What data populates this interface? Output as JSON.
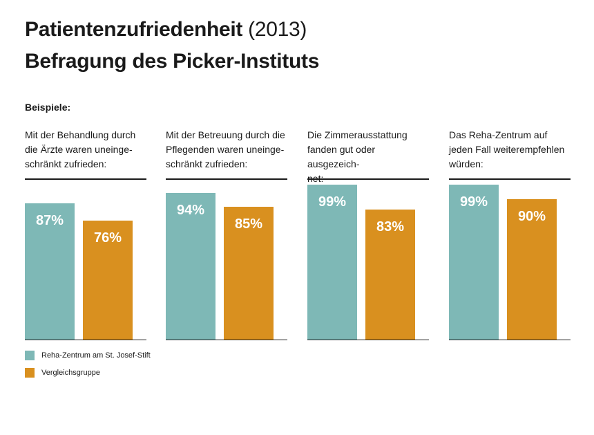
{
  "title": {
    "line1_bold": "Patientenzufriedenheit",
    "line1_light": "(2013)",
    "line2": "Befragung des Picker-Instituts"
  },
  "subheading": "Beispiele:",
  "colors": {
    "series1": "#7eb8b6",
    "series2": "#d9901f"
  },
  "chart_data": {
    "type": "bar",
    "categories": [
      "Mit der Behandlung durch die Ärzte waren uneinge-schränkt zufrieden:",
      "Mit der Betreuung durch die Pflegenden waren uneinge-schränkt zufrieden:",
      "Die Zimmerausstattung fanden gut oder ausgezeich-net:",
      "Das Reha-Zentrum auf jeden Fall weiterempfehlen würden:"
    ],
    "category_lines": [
      [
        "Mit der Behandlung durch",
        "die Ärzte waren uneinge-",
        "schränkt zufrieden:"
      ],
      [
        "Mit der Betreuung durch die",
        "Pflegenden waren uneinge-",
        "schränkt zufrieden:"
      ],
      [
        "Die Zimmerausstattung",
        "fanden gut oder ausgezeich-",
        "net:"
      ],
      [
        "Das Reha-Zentrum auf",
        "jeden Fall weiterempfehlen",
        "würden:"
      ]
    ],
    "series": [
      {
        "name": "Reha-Zentrum am St. Josef-Stift",
        "values": [
          87,
          94,
          99,
          99
        ],
        "labels": [
          "87%",
          "94%",
          "99%",
          "99%"
        ]
      },
      {
        "name": "Vergleichsgruppe",
        "values": [
          76,
          85,
          83,
          90
        ],
        "labels": [
          "76%",
          "85%",
          "83%",
          "90%"
        ]
      }
    ],
    "unit": "%",
    "ylim": [
      0,
      100
    ],
    "grid": false,
    "legend_position": "bottom-left"
  },
  "legend": [
    {
      "label": "Reha-Zentrum am St. Josef-Stift"
    },
    {
      "label": "Vergleichsgruppe"
    }
  ]
}
